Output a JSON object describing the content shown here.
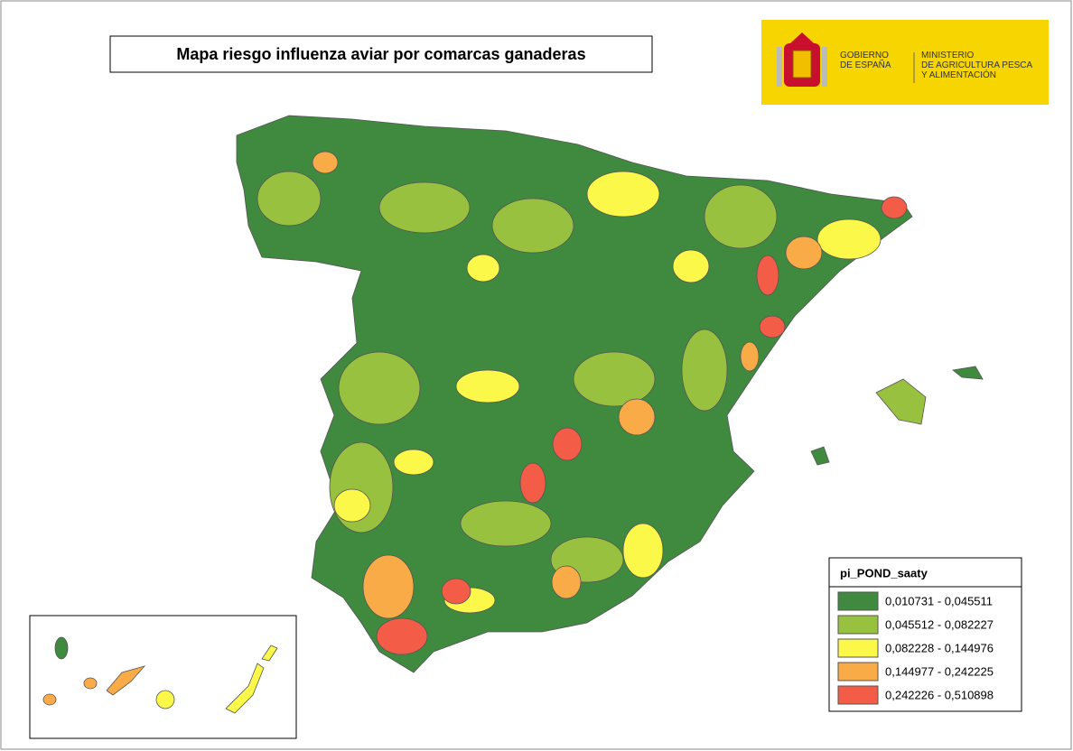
{
  "title": "Mapa riesgo influenza aviar por comarcas ganaderas",
  "logo": {
    "left": [
      "GOBIERNO",
      "DE ESPAÑA"
    ],
    "right": [
      "MINISTERIO",
      "DE AGRICULTURA PESCA",
      "Y ALIMENTACIÓN"
    ]
  },
  "legend": {
    "title": "pi_POND_saaty",
    "items": [
      {
        "label": "0,010731 - 0,045511",
        "color": "#3f8a3f"
      },
      {
        "label": "0,045512 - 0,082227",
        "color": "#99c140"
      },
      {
        "label": "0,082228 - 0,144976",
        "color": "#fbf84a"
      },
      {
        "label": "0,144977 - 0,242225",
        "color": "#f9ab47"
      },
      {
        "label": "0,242226 - 0,510898",
        "color": "#f35c47"
      }
    ]
  }
}
